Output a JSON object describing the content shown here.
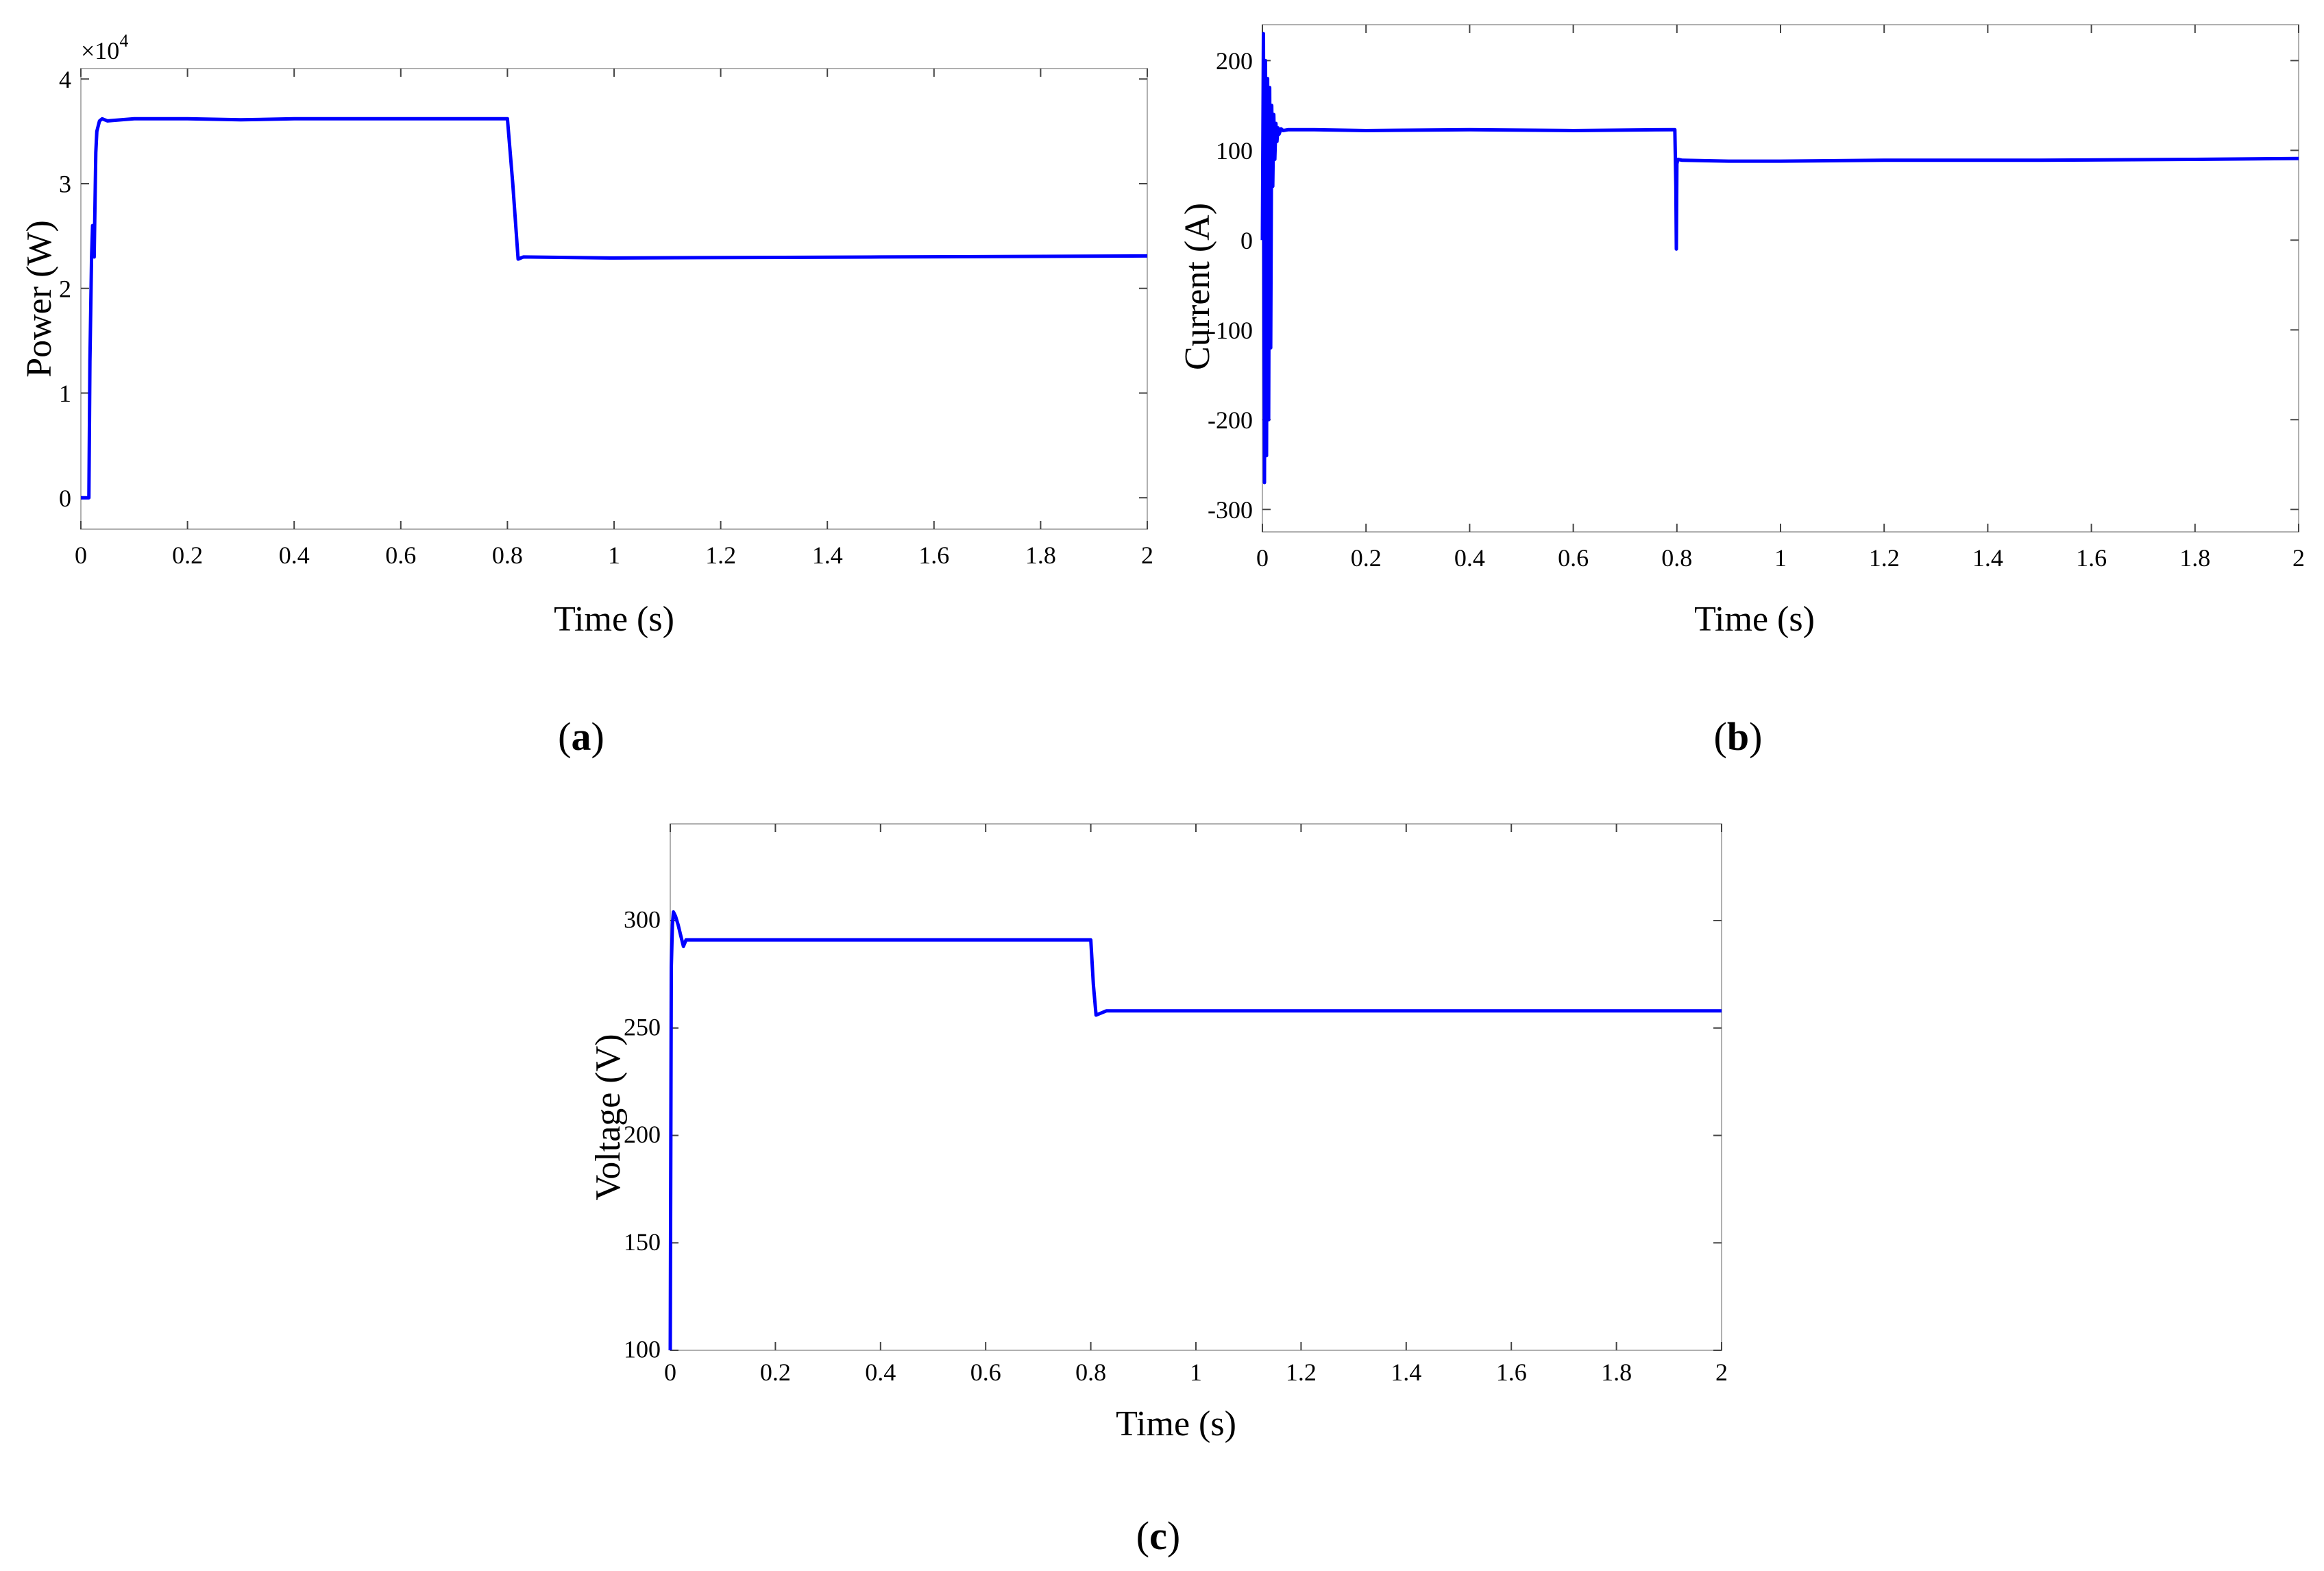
{
  "chart_data": [
    {
      "type": "line",
      "panel": "a",
      "caption": {
        "open": "(",
        "letter": "a",
        "close": ")"
      },
      "xlabel": "Time (s)",
      "ylabel": "Power (W)",
      "xlim": [
        0,
        2
      ],
      "ylim": [
        -0.3,
        4.1
      ],
      "xticks": [
        0,
        0.2,
        0.4,
        0.6,
        0.8,
        1,
        1.2,
        1.4,
        1.6,
        1.8,
        2
      ],
      "xtick_labels": [
        "0",
        "0.2",
        "0.4",
        "0.6",
        "0.8",
        "1",
        "1.2",
        "1.4",
        "1.6",
        "1.8",
        "2"
      ],
      "yticks": [
        0,
        1,
        2,
        3,
        4
      ],
      "ytick_labels": [
        "0",
        "1",
        "2",
        "3",
        "4"
      ],
      "y_multiplier": {
        "base": "×10",
        "exponent": "4"
      },
      "series": [
        {
          "name": "Power",
          "color": "#0000ff",
          "x": [
            0,
            0.015,
            0.017,
            0.02,
            0.022,
            0.025,
            0.028,
            0.03,
            0.035,
            0.04,
            0.05,
            0.1,
            0.2,
            0.3,
            0.4,
            0.5,
            0.6,
            0.7,
            0.795,
            0.8,
            0.81,
            0.82,
            0.83,
            1.0,
            1.5,
            2.0
          ],
          "y": [
            0,
            0,
            1.3,
            2.3,
            2.6,
            2.3,
            3.3,
            3.5,
            3.6,
            3.62,
            3.6,
            3.62,
            3.62,
            3.61,
            3.62,
            3.62,
            3.62,
            3.62,
            3.62,
            3.62,
            3.0,
            2.28,
            2.3,
            2.29,
            2.3,
            2.31
          ]
        }
      ]
    },
    {
      "type": "line",
      "panel": "b",
      "caption": {
        "open": "(",
        "letter": "b",
        "close": ")"
      },
      "xlabel": "Time (s)",
      "ylabel": "Current (A)",
      "xlim": [
        0,
        2
      ],
      "ylim": [
        -325,
        240
      ],
      "xticks": [
        0,
        0.2,
        0.4,
        0.6,
        0.8,
        1,
        1.2,
        1.4,
        1.6,
        1.8,
        2
      ],
      "xtick_labels": [
        "0",
        "0.2",
        "0.4",
        "0.6",
        "0.8",
        "1",
        "1.2",
        "1.4",
        "1.6",
        "1.8",
        "2"
      ],
      "yticks": [
        -300,
        -200,
        -100,
        0,
        100,
        200
      ],
      "ytick_labels": [
        "-300",
        "-200",
        "-100",
        "0",
        "100",
        "200"
      ],
      "series": [
        {
          "name": "Current",
          "color": "#0000ff",
          "x": [
            0,
            0.002,
            0.004,
            0.006,
            0.008,
            0.01,
            0.012,
            0.014,
            0.016,
            0.018,
            0.02,
            0.022,
            0.024,
            0.026,
            0.028,
            0.03,
            0.032,
            0.036,
            0.04,
            0.05,
            0.1,
            0.2,
            0.4,
            0.6,
            0.79,
            0.796,
            0.798,
            0.799,
            0.8,
            0.802,
            0.81,
            0.9,
            1.0,
            1.2,
            1.5,
            1.8,
            2.0
          ],
          "y": [
            0,
            230,
            -270,
            200,
            -240,
            180,
            -200,
            170,
            -120,
            150,
            60,
            140,
            90,
            130,
            110,
            125,
            118,
            124,
            122,
            123,
            123,
            122,
            123,
            122,
            123,
            123,
            60,
            -10,
            85,
            90,
            89,
            88,
            88,
            89,
            89,
            90,
            91
          ]
        }
      ]
    },
    {
      "type": "line",
      "panel": "c",
      "caption": {
        "open": "(",
        "letter": "c",
        "close": ")"
      },
      "xlabel": "Time (s)",
      "ylabel": "Voltage (V)",
      "xlim": [
        0,
        2
      ],
      "ylim": [
        100,
        345
      ],
      "xticks": [
        0,
        0.2,
        0.4,
        0.6,
        0.8,
        1,
        1.2,
        1.4,
        1.6,
        1.8,
        2
      ],
      "xtick_labels": [
        "0",
        "0.2",
        "0.4",
        "0.6",
        "0.8",
        "1",
        "1.2",
        "1.4",
        "1.6",
        "1.8",
        "2"
      ],
      "yticks": [
        100,
        150,
        200,
        250,
        300
      ],
      "ytick_labels": [
        "100",
        "150",
        "200",
        "250",
        "300"
      ],
      "series": [
        {
          "name": "Voltage",
          "color": "#0000ff",
          "x": [
            0,
            0.002,
            0.004,
            0.006,
            0.01,
            0.015,
            0.02,
            0.025,
            0.03,
            0.04,
            0.05,
            0.1,
            0.3,
            0.5,
            0.7,
            0.795,
            0.8,
            0.805,
            0.81,
            0.83,
            0.9,
            1.2,
            1.6,
            2.0
          ],
          "y": [
            100,
            278,
            298,
            304,
            302,
            298,
            293,
            288,
            291,
            291,
            291,
            291,
            291,
            291,
            291,
            291,
            291,
            270,
            256,
            258,
            258,
            258,
            258,
            258
          ]
        }
      ]
    }
  ]
}
